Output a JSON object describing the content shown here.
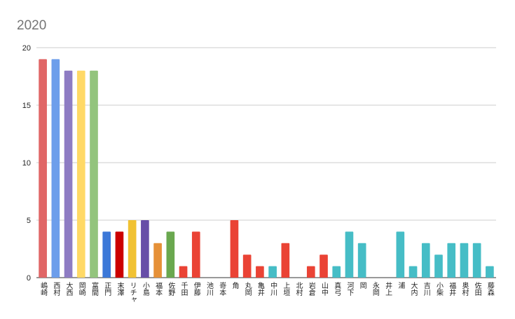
{
  "chart_data": {
    "type": "bar",
    "title": "2020",
    "categories": [
      "嶋崎",
      "西村",
      "大西",
      "岡崎",
      "富間",
      "正門",
      "末澤",
      "リチャ",
      "小島",
      "福本",
      "佐野",
      "千田",
      "伊藤",
      "池川",
      "嵜本",
      "角",
      "丸岡",
      "亀井",
      "中川",
      "上垣",
      "北村",
      "岩倉",
      "山中",
      "真弓",
      "河下",
      "岡",
      "永岡",
      "井上",
      "浦",
      "大内",
      "吉川",
      "小柴",
      "福井",
      "奥村",
      "佐田",
      "藤森"
    ],
    "values": [
      19,
      19,
      18,
      18,
      18,
      4,
      4,
      5,
      5,
      3,
      4,
      1,
      4,
      0,
      0,
      5,
      2,
      1,
      1,
      3,
      0,
      1,
      2,
      1,
      4,
      3,
      0,
      0,
      4,
      1,
      3,
      2,
      3,
      3,
      3,
      1
    ],
    "colors": [
      "#e06666",
      "#6d9eeb",
      "#8e7cc3",
      "#ffd966",
      "#93c47d",
      "#3c78d8",
      "#cc0000",
      "#f1c232",
      "#674ea7",
      "#e69138",
      "#6aa84f",
      "#ea4335",
      "#ea4335",
      "#ea4335",
      "#ea4335",
      "#ea4335",
      "#ea4335",
      "#ea4335",
      "#46bdc6",
      "#ea4335",
      "#ea4335",
      "#ea4335",
      "#ea4335",
      "#46bdc6",
      "#46bdc6",
      "#46bdc6",
      "#46bdc6",
      "#46bdc6",
      "#46bdc6",
      "#46bdc6",
      "#46bdc6",
      "#46bdc6",
      "#46bdc6",
      "#46bdc6",
      "#46bdc6",
      "#46bdc6"
    ],
    "ylim": [
      0,
      20
    ],
    "yticks": [
      0,
      5,
      10,
      15,
      20
    ],
    "grid": true
  }
}
